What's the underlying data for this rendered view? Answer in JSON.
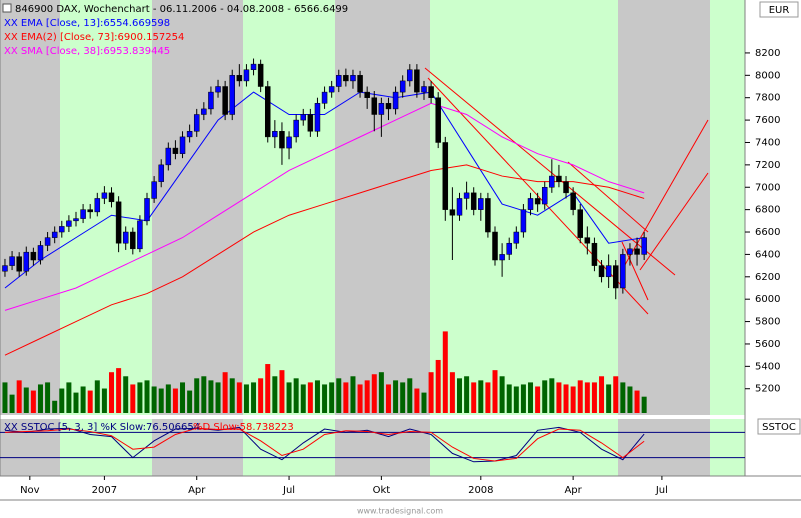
{
  "chart_data": {
    "type": "candlestick",
    "title": "846900  DAX, Wochenchart - 06.11.2006 - 04.08.2008 - 6566.6499",
    "currency": "EUR",
    "xlim": [
      -0.7,
      104.2
    ],
    "xticks": [
      {
        "value": 3.5,
        "label": "Nov"
      },
      {
        "value": 14,
        "label": "2007"
      },
      {
        "value": 27,
        "label": "Apr"
      },
      {
        "value": 40,
        "label": "Jul"
      },
      {
        "value": 53,
        "label": "Okt"
      },
      {
        "value": 67,
        "label": "2008"
      },
      {
        "value": 80,
        "label": "Apr"
      },
      {
        "value": 92.5,
        "label": "Jul"
      }
    ],
    "ylim": [
      5010,
      8655
    ],
    "yticks": [
      5200,
      5400,
      5600,
      5800,
      6000,
      6200,
      6400,
      6600,
      6800,
      7000,
      7200,
      7400,
      7600,
      7800,
      8000,
      8200
    ],
    "up_color": "#0000ff",
    "down_color": "#000000",
    "open": [
      6250,
      6300,
      6380,
      6250,
      6420,
      6350,
      6480,
      6550,
      6600,
      6650,
      6700,
      6720,
      6800,
      6780,
      6900,
      6950,
      6870,
      6500,
      6600,
      6450,
      6700,
      6900,
      7050,
      7200,
      7350,
      7300,
      7450,
      7500,
      7650,
      7700,
      7850,
      7900,
      7650,
      8000,
      7950,
      8050,
      8100,
      7900,
      7450,
      7500,
      7350,
      7450,
      7600,
      7650,
      7500,
      7750,
      7850,
      7900,
      8000,
      7950,
      8000,
      7850,
      7800,
      7650,
      7750,
      7700,
      7850,
      7950,
      8050,
      7850,
      7900,
      7800,
      7400,
      6800,
      6750,
      6900,
      6950,
      6800,
      6900,
      6600,
      6350,
      6400,
      6500,
      6600,
      6800,
      6900,
      6850,
      7000,
      7100,
      7050,
      6950,
      6800,
      6550,
      6500,
      6300,
      6200,
      6300,
      6100,
      6400,
      6450,
      6400
    ],
    "high": [
      6360,
      6430,
      6420,
      6470,
      6460,
      6520,
      6600,
      6650,
      6700,
      6750,
      6780,
      6850,
      6850,
      6950,
      7010,
      7000,
      6920,
      6650,
      6640,
      6750,
      6950,
      7100,
      7250,
      7400,
      7420,
      7500,
      7560,
      7700,
      7760,
      7900,
      7960,
      7950,
      8050,
      8100,
      8100,
      8150,
      8140,
      7950,
      7600,
      7580,
      7500,
      7650,
      7700,
      7700,
      7800,
      7900,
      7950,
      8050,
      8060,
      8050,
      8040,
      7900,
      7860,
      7800,
      7800,
      7900,
      8000,
      8100,
      8100,
      7950,
      7950,
      7850,
      7450,
      7000,
      6950,
      7050,
      7000,
      6950,
      6950,
      6650,
      6500,
      6550,
      6650,
      6850,
      6950,
      6950,
      7050,
      7250,
      7200,
      7100,
      7000,
      6850,
      6650,
      6550,
      6350,
      6400,
      6350,
      6450,
      6500,
      6550,
      6600
    ],
    "low": [
      6200,
      6260,
      6200,
      6210,
      6300,
      6310,
      6430,
      6500,
      6550,
      6600,
      6650,
      6680,
      6720,
      6740,
      6850,
      6820,
      6420,
      6440,
      6400,
      6420,
      6660,
      6860,
      7000,
      7150,
      7250,
      7260,
      7400,
      7450,
      7600,
      7650,
      7800,
      7600,
      7600,
      7900,
      7900,
      8000,
      7850,
      7400,
      7350,
      7200,
      7250,
      7400,
      7550,
      7450,
      7450,
      7700,
      7800,
      7850,
      7900,
      7880,
      7800,
      7700,
      7500,
      7450,
      7600,
      7650,
      7800,
      7900,
      7800,
      7780,
      7750,
      7350,
      6700,
      6350,
      6700,
      6800,
      6750,
      6700,
      6550,
      6300,
      6200,
      6350,
      6450,
      6550,
      6750,
      6780,
      6800,
      6950,
      7000,
      6900,
      6750,
      6500,
      6400,
      6250,
      6150,
      6100,
      6000,
      6050,
      6300,
      6300,
      6350
    ],
    "close": [
      6300,
      6380,
      6250,
      6420,
      6350,
      6480,
      6550,
      6600,
      6650,
      6700,
      6720,
      6800,
      6780,
      6900,
      6950,
      6870,
      6500,
      6600,
      6450,
      6700,
      6900,
      7050,
      7200,
      7350,
      7300,
      7450,
      7500,
      7650,
      7700,
      7850,
      7900,
      7650,
      8000,
      7950,
      8050,
      8100,
      7900,
      7450,
      7500,
      7350,
      7450,
      7600,
      7650,
      7500,
      7750,
      7850,
      7900,
      8000,
      7950,
      8000,
      7850,
      7800,
      7650,
      7750,
      7700,
      7850,
      7950,
      8050,
      7850,
      7900,
      7800,
      7400,
      6800,
      6750,
      6900,
      6950,
      6800,
      6900,
      6600,
      6350,
      6400,
      6500,
      6600,
      6800,
      6900,
      6850,
      7000,
      7100,
      7050,
      6950,
      6800,
      6550,
      6500,
      6300,
      6200,
      6300,
      6100,
      6400,
      6450,
      6400,
      6550
    ],
    "volume": {
      "ylim": [
        0,
        400
      ],
      "up_color": "#006400",
      "down_color": "#ff0000",
      "values": [
        30,
        18,
        32,
        25,
        22,
        28,
        30,
        12,
        24,
        30,
        20,
        26,
        22,
        32,
        24,
        40,
        44,
        36,
        28,
        30,
        32,
        26,
        24,
        28,
        24,
        30,
        22,
        34,
        36,
        32,
        30,
        40,
        34,
        30,
        28,
        30,
        34,
        48,
        36,
        42,
        30,
        34,
        28,
        30,
        32,
        28,
        30,
        34,
        30,
        36,
        28,
        32,
        38,
        40,
        28,
        32,
        30,
        34,
        24,
        20,
        40,
        52,
        80,
        40,
        34,
        36,
        30,
        32,
        30,
        42,
        36,
        28,
        26,
        28,
        30,
        26,
        32,
        34,
        30,
        28,
        26,
        32,
        30,
        30,
        36,
        28,
        36,
        30,
        26,
        22,
        16
      ]
    },
    "indicators": [
      {
        "name": "XX EMA [Close, 13]:6554.669598",
        "color": "#0000ff",
        "x": [
          0,
          5,
          10,
          15,
          20,
          25,
          30,
          35,
          40,
          45,
          50,
          55,
          60,
          65,
          70,
          75,
          80,
          85,
          90
        ],
        "values": [
          6100,
          6350,
          6550,
          6750,
          6700,
          7150,
          7600,
          7850,
          7650,
          7650,
          7850,
          7800,
          7850,
          7350,
          6850,
          6750,
          6950,
          6500,
          6550
        ]
      },
      {
        "name": "XX EMA(2) [Close, 73]:6900.157254",
        "color": "#ff0000",
        "x": [
          0,
          5,
          10,
          15,
          20,
          25,
          30,
          35,
          40,
          45,
          50,
          55,
          60,
          65,
          70,
          75,
          80,
          85,
          90
        ],
        "values": [
          5500,
          5650,
          5800,
          5950,
          6050,
          6200,
          6400,
          6600,
          6750,
          6850,
          6950,
          7050,
          7150,
          7200,
          7100,
          7050,
          7050,
          7000,
          6900
        ]
      },
      {
        "name": "XX SMA [Close, 38]:6953.839445",
        "color": "#ff00ff",
        "x": [
          0,
          5,
          10,
          15,
          20,
          25,
          30,
          35,
          40,
          45,
          50,
          55,
          60,
          65,
          70,
          75,
          80,
          85,
          90
        ],
        "values": [
          5900,
          6000,
          6100,
          6250,
          6400,
          6550,
          6750,
          6950,
          7150,
          7300,
          7450,
          7600,
          7750,
          7650,
          7450,
          7300,
          7200,
          7050,
          6950
        ]
      }
    ],
    "oscillator": {
      "label": "SSTOC",
      "ylim": [
        0,
        100
      ],
      "levels": [
        20,
        80
      ],
      "series": [
        {
          "name": "XX SSTOC [5, 3, 3] %K Slow:76.506654",
          "color": "#000080",
          "x": [
            0,
            3,
            6,
            9,
            12,
            15,
            18,
            21,
            24,
            27,
            30,
            33,
            36,
            39,
            42,
            45,
            48,
            51,
            54,
            57,
            60,
            63,
            66,
            69,
            72,
            75,
            78,
            81,
            84,
            87,
            90
          ],
          "values": [
            85,
            80,
            88,
            90,
            75,
            70,
            20,
            60,
            88,
            90,
            85,
            92,
            40,
            15,
            55,
            88,
            80,
            85,
            70,
            88,
            75,
            30,
            10,
            12,
            25,
            85,
            92,
            80,
            40,
            15,
            76
          ]
        },
        {
          "name": "%D Slow:58.738223",
          "color": "#ff0000",
          "x": [
            0,
            3,
            6,
            9,
            12,
            15,
            18,
            21,
            24,
            27,
            30,
            33,
            36,
            39,
            42,
            45,
            48,
            51,
            54,
            57,
            60,
            63,
            66,
            69,
            72,
            75,
            78,
            81,
            84,
            87,
            90
          ],
          "values": [
            80,
            82,
            84,
            88,
            82,
            72,
            40,
            45,
            75,
            90,
            87,
            88,
            60,
            25,
            40,
            75,
            84,
            82,
            75,
            82,
            80,
            45,
            18,
            12,
            18,
            65,
            88,
            85,
            55,
            20,
            59
          ]
        }
      ]
    },
    "footer": "www.tradesignal.com"
  }
}
